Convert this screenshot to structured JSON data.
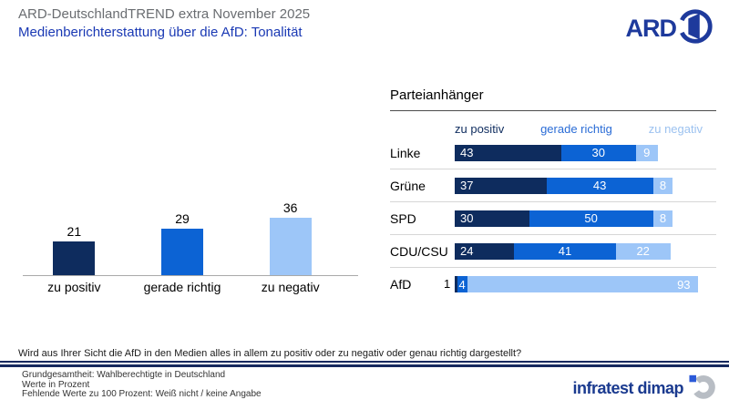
{
  "header": {
    "title": "ARD-DeutschlandTREND extra November 2025",
    "subtitle": "Medienberichterstattung über die AfD: Tonalität",
    "logo": "ARD"
  },
  "colors": {
    "navy": "#0e2c5e",
    "blue": "#0c63d4",
    "light_blue": "#9dc6f8"
  },
  "chart_data": [
    {
      "type": "bar",
      "orientation": "vertical",
      "categories": [
        "zu positiv",
        "gerade richtig",
        "zu negativ"
      ],
      "values": [
        21,
        29,
        36
      ],
      "colors": [
        "#0e2c5e",
        "#0c63d4",
        "#9dc6f8"
      ],
      "title": "",
      "xlabel": "",
      "ylabel": "",
      "ylim": [
        0,
        40
      ],
      "unit": "Prozent",
      "grid": false
    },
    {
      "type": "bar",
      "orientation": "horizontal-stacked",
      "title": "Parteianhänger",
      "legend": [
        "zu positiv",
        "gerade richtig",
        "zu negativ"
      ],
      "legend_position": "top",
      "categories": [
        "Linke",
        "Grüne",
        "SPD",
        "CDU/CSU",
        "AfD"
      ],
      "series": [
        {
          "name": "zu positiv",
          "values": [
            43,
            37,
            30,
            24,
            1
          ]
        },
        {
          "name": "gerade richtig",
          "values": [
            30,
            43,
            50,
            41,
            4
          ]
        },
        {
          "name": "zu negativ",
          "values": [
            9,
            8,
            8,
            22,
            93
          ]
        }
      ],
      "xlim": [
        0,
        100
      ],
      "unit": "Prozent",
      "grid": false
    }
  ],
  "question": "Wird aus Ihrer Sicht die AfD in den Medien alles in allem zu positiv oder zu negativ oder genau richtig dargestellt?",
  "footer": {
    "lines": [
      "Grundgesamtheit: Wahlberechtigte in Deutschland",
      "Werte in Prozent",
      "Fehlende Werte zu 100 Prozent: Weiß nicht / keine Angabe"
    ],
    "brand": "infratest dimap"
  }
}
